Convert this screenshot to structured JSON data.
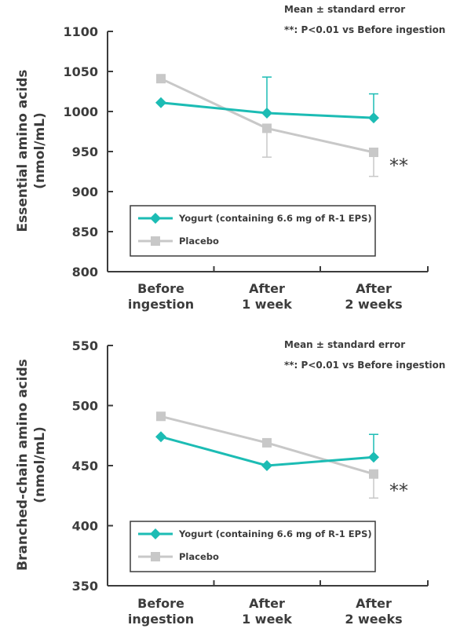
{
  "colors": {
    "yogurt": "#1cbcb4",
    "placebo": "#c8c8c8",
    "error_bar_placebo": "#c8c8c8",
    "axis": "#3c3c3c"
  },
  "chart_data": [
    {
      "type": "line",
      "ylabel": "Essential amino acids\n(nmol/mL)",
      "categories": [
        "Before\ningestion",
        "After\n1 week",
        "After\n2 weeks"
      ],
      "ylim": [
        800,
        1100
      ],
      "yticks": [
        800,
        850,
        900,
        950,
        1000,
        1050,
        1100
      ],
      "series": [
        {
          "name": "Yogurt (containing 6.6 mg of R-1 EPS)",
          "marker": "diamond",
          "values": [
            1011,
            998,
            992
          ],
          "errors": [
            0,
            45,
            30
          ]
        },
        {
          "name": "Placebo",
          "marker": "square",
          "values": [
            1041,
            979,
            949
          ],
          "errors": [
            0,
            36,
            30
          ]
        }
      ],
      "annotations": {
        "note1": "Mean ± standard error",
        "note2": "**: P<0.01 vs Before ingestion",
        "significance": "**"
      },
      "legend_position": "bottom-left"
    },
    {
      "type": "line",
      "ylabel": "Branched-chain amino acids\n(nmol/mL)",
      "categories": [
        "Before\ningestion",
        "After\n1 week",
        "After\n2 weeks"
      ],
      "ylim": [
        350,
        550
      ],
      "yticks": [
        350,
        400,
        450,
        500,
        550
      ],
      "series": [
        {
          "name": "Yogurt (containing 6.6 mg of R-1 EPS)",
          "marker": "diamond",
          "values": [
            474,
            450,
            457
          ],
          "errors": [
            0,
            0,
            19
          ]
        },
        {
          "name": "Placebo",
          "marker": "square",
          "values": [
            491,
            469,
            443
          ],
          "errors": [
            0,
            0,
            20
          ]
        }
      ],
      "annotations": {
        "note1": "Mean ± standard error",
        "note2": "**: P<0.01 vs Before ingestion",
        "significance": "**"
      },
      "legend_position": "bottom-left"
    }
  ]
}
